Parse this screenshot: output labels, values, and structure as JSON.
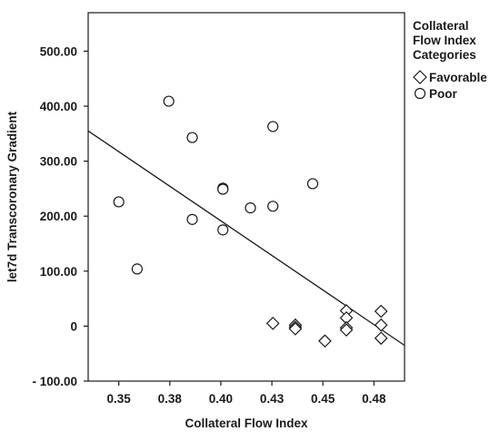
{
  "chart_data": {
    "type": "scatter",
    "xlabel": "Collateral Flow Index",
    "ylabel": "let7d Transcoronary Gradient",
    "xlim": [
      0.335,
      0.49
    ],
    "ylim": [
      -100,
      570
    ],
    "xticks": [
      0.35,
      0.375,
      0.4,
      0.425,
      0.45,
      0.475
    ],
    "xtick_labels": [
      "0.35",
      "0.38",
      "0.40",
      "0.43",
      "0.45",
      "0.48"
    ],
    "yticks": [
      -100,
      0,
      100,
      200,
      300,
      400,
      500
    ],
    "ytick_labels": [
      "- 100.00",
      "0",
      "100.00",
      "200.00",
      "300.00",
      "400.00",
      "500.00"
    ],
    "grid": false,
    "legend": {
      "title_lines": [
        "Collateral",
        "Flow Index",
        "Categories"
      ],
      "placement": "right"
    },
    "series": [
      {
        "name": "Favorable",
        "marker": "diamond",
        "color": "#1a1a1a",
        "points": [
          [
            0.4255,
            5
          ],
          [
            0.4365,
            2
          ],
          [
            0.4365,
            -2
          ],
          [
            0.4365,
            -5
          ],
          [
            0.451,
            -27
          ],
          [
            0.4615,
            28
          ],
          [
            0.4615,
            15
          ],
          [
            0.4615,
            -3
          ],
          [
            0.4615,
            -7
          ],
          [
            0.4785,
            27
          ],
          [
            0.4785,
            2
          ],
          [
            0.4785,
            -22
          ]
        ]
      },
      {
        "name": "Poor",
        "marker": "circle",
        "color": "#1a1a1a",
        "points": [
          [
            0.35,
            226
          ],
          [
            0.359,
            104
          ],
          [
            0.3745,
            409
          ],
          [
            0.386,
            343
          ],
          [
            0.386,
            194
          ],
          [
            0.401,
            251
          ],
          [
            0.401,
            249
          ],
          [
            0.401,
            175
          ],
          [
            0.4145,
            215
          ],
          [
            0.4255,
            363
          ],
          [
            0.4255,
            218
          ],
          [
            0.445,
            259
          ]
        ]
      }
    ],
    "fit_line": {
      "color": "#1a1a1a",
      "points": [
        [
          0.335,
          355
        ],
        [
          0.49,
          -35
        ]
      ]
    }
  }
}
